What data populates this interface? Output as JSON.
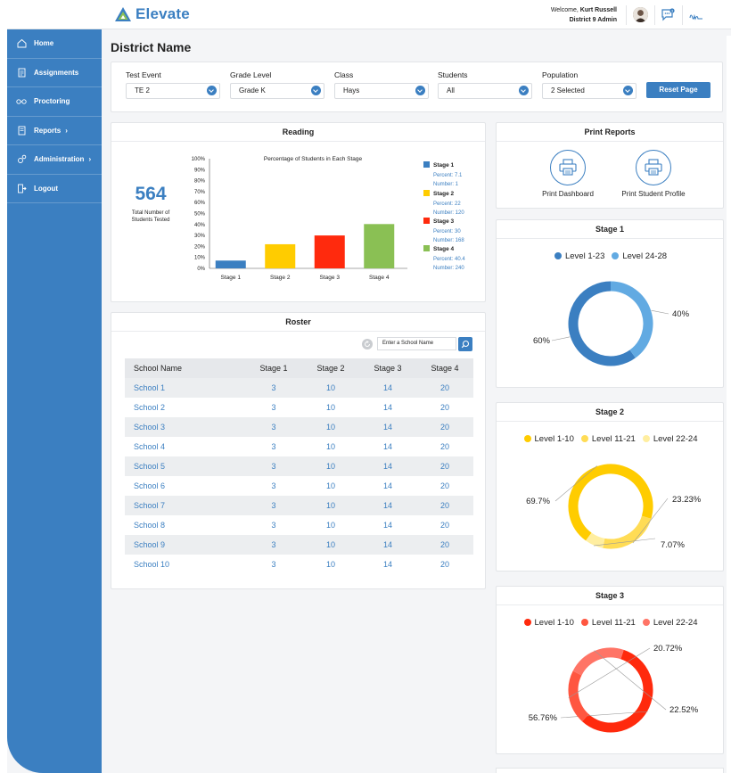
{
  "app": {
    "name": "Elevate"
  },
  "user": {
    "welcome_prefix": "Welcome,",
    "name": "Kurt Russell",
    "role": "District 9 Admin",
    "chat_badge": "3"
  },
  "sidebar": {
    "items": [
      {
        "label": "Home",
        "icon": "home-icon"
      },
      {
        "label": "Assignments",
        "icon": "assignments-icon"
      },
      {
        "label": "Proctoring",
        "icon": "proctoring-icon"
      },
      {
        "label": "Reports",
        "icon": "reports-icon",
        "chevron": true
      },
      {
        "label": "Administration",
        "icon": "administration-icon",
        "chevron": true
      },
      {
        "label": "Logout",
        "icon": "logout-icon"
      }
    ]
  },
  "page": {
    "title": "District Name"
  },
  "filters": {
    "items": [
      {
        "label": "Test Event",
        "value": "TE 2"
      },
      {
        "label": "Grade Level",
        "value": "Grade K"
      },
      {
        "label": "Class",
        "value": "Hays"
      },
      {
        "label": "Students",
        "value": "All"
      },
      {
        "label": "Population",
        "value": "2 Selected"
      }
    ],
    "reset_label": "Reset Page"
  },
  "reading": {
    "title": "Reading",
    "total_number": "564",
    "total_label_1": "Total Number of",
    "total_label_2": "Students Tested",
    "legend": [
      {
        "name": "Stage 1",
        "percent": "Percent: 7.1",
        "number": "Number: 1",
        "color": "#3b7fc1"
      },
      {
        "name": "Stage 2",
        "percent": "Percent: 22",
        "number": "Number: 120",
        "color": "#ffcc00"
      },
      {
        "name": "Stage 3",
        "percent": "Percent: 30",
        "number": "Number: 168",
        "color": "#ff2a0d"
      },
      {
        "name": "Stage 4",
        "percent": "Percent: 40.4",
        "number": "Number: 240",
        "color": "#8ac054"
      }
    ]
  },
  "chart_data": [
    {
      "type": "bar",
      "title": "Percentage of Students in Each Stage",
      "categories": [
        "Stage 1",
        "Stage 2",
        "Stage 3",
        "Stage 4"
      ],
      "values": [
        7.1,
        22,
        30,
        40.4
      ],
      "colors": [
        "#3b7fc1",
        "#ffcc00",
        "#ff2a0d",
        "#8ac054"
      ],
      "ylim": [
        0,
        100
      ],
      "yticks": [
        "0%",
        "10%",
        "20%",
        "30%",
        "40%",
        "50%",
        "60%",
        "70%",
        "80%",
        "90%",
        "100%"
      ],
      "grid": false,
      "legend": "right"
    },
    {
      "type": "pie",
      "title": "Stage 1",
      "labels": [
        "Level 1-23",
        "Level 24-28"
      ],
      "values": [
        60,
        40
      ],
      "value_labels": [
        "60%",
        "40%"
      ],
      "colors": [
        "#3b7fc1",
        "#62aae2"
      ],
      "legend": "top"
    },
    {
      "type": "pie",
      "title": "Stage 2",
      "labels": [
        "Level 1-10",
        "Level 11-21",
        "Level 22-24"
      ],
      "values": [
        69.7,
        23.23,
        7.07
      ],
      "value_labels": [
        "69.7%",
        "23.23%",
        "7.07%"
      ],
      "colors": [
        "#ffcc00",
        "#ffdc55",
        "#ffeea0"
      ],
      "legend": "top"
    },
    {
      "type": "pie",
      "title": "Stage 3",
      "labels": [
        "Level 1-10",
        "Level 11-21",
        "Level 22-24"
      ],
      "values": [
        56.76,
        20.72,
        22.52
      ],
      "value_labels": [
        "56.76%",
        "20.72%",
        "22.52%"
      ],
      "colors": [
        "#ff2a0d",
        "#ff5640",
        "#ff7466"
      ],
      "legend": "top"
    }
  ],
  "roster": {
    "title": "Roster",
    "search_placeholder": "Enter a School Name",
    "columns": [
      "School Name",
      "Stage 1",
      "Stage 2",
      "Stage 3",
      "Stage 4"
    ],
    "rows": [
      [
        "School 1",
        "3",
        "10",
        "14",
        "20"
      ],
      [
        "School 2",
        "3",
        "10",
        "14",
        "20"
      ],
      [
        "School 3",
        "3",
        "10",
        "14",
        "20"
      ],
      [
        "School 4",
        "3",
        "10",
        "14",
        "20"
      ],
      [
        "School 5",
        "3",
        "10",
        "14",
        "20"
      ],
      [
        "School 6",
        "3",
        "10",
        "14",
        "20"
      ],
      [
        "School 7",
        "3",
        "10",
        "14",
        "20"
      ],
      [
        "School 8",
        "3",
        "10",
        "14",
        "20"
      ],
      [
        "School 9",
        "3",
        "10",
        "14",
        "20"
      ],
      [
        "School 10",
        "3",
        "10",
        "14",
        "20"
      ]
    ]
  },
  "print_reports": {
    "title": "Print Reports",
    "items": [
      {
        "label": "Print Dashboard"
      },
      {
        "label": "Print Student Profile"
      }
    ]
  }
}
